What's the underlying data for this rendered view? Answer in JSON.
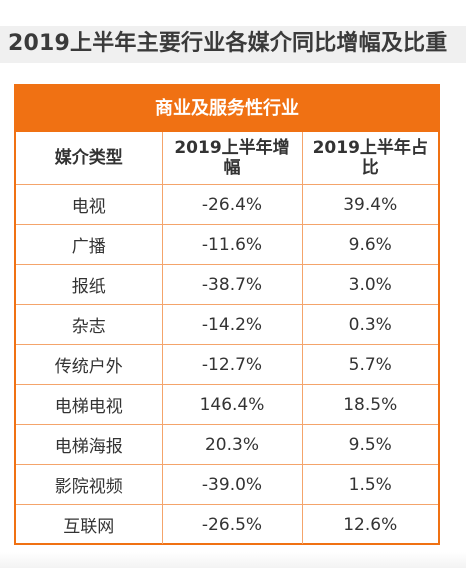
{
  "title": "2019上半年主要行业各媒介同比增幅及比重",
  "chart_data": {
    "type": "table",
    "title": "2019上半年主要行业各媒介同比增幅及比重",
    "group_header": "商业及服务性行业",
    "columns": [
      "媒介类型",
      "2019上半年增幅",
      "2019上半年占比"
    ],
    "rows": [
      {
        "media": "电视",
        "growth": "-26.4%",
        "share": "39.4%"
      },
      {
        "media": "广播",
        "growth": "-11.6%",
        "share": "9.6%"
      },
      {
        "media": "报纸",
        "growth": "-38.7%",
        "share": "3.0%"
      },
      {
        "media": "杂志",
        "growth": "-14.2%",
        "share": "0.3%"
      },
      {
        "media": "传统户外",
        "growth": "-12.7%",
        "share": "5.7%"
      },
      {
        "media": "电梯电视",
        "growth": "146.4%",
        "share": "18.5%"
      },
      {
        "media": "电梯海报",
        "growth": "20.3%",
        "share": "9.5%"
      },
      {
        "media": "影院视频",
        "growth": "-39.0%",
        "share": "1.5%"
      },
      {
        "media": "互联网",
        "growth": "-26.5%",
        "share": "12.6%"
      }
    ]
  },
  "colors": {
    "accent": "#f07113",
    "grid": "#f4a46b",
    "title_bg": "#f0f0f0",
    "text": "#333333"
  }
}
